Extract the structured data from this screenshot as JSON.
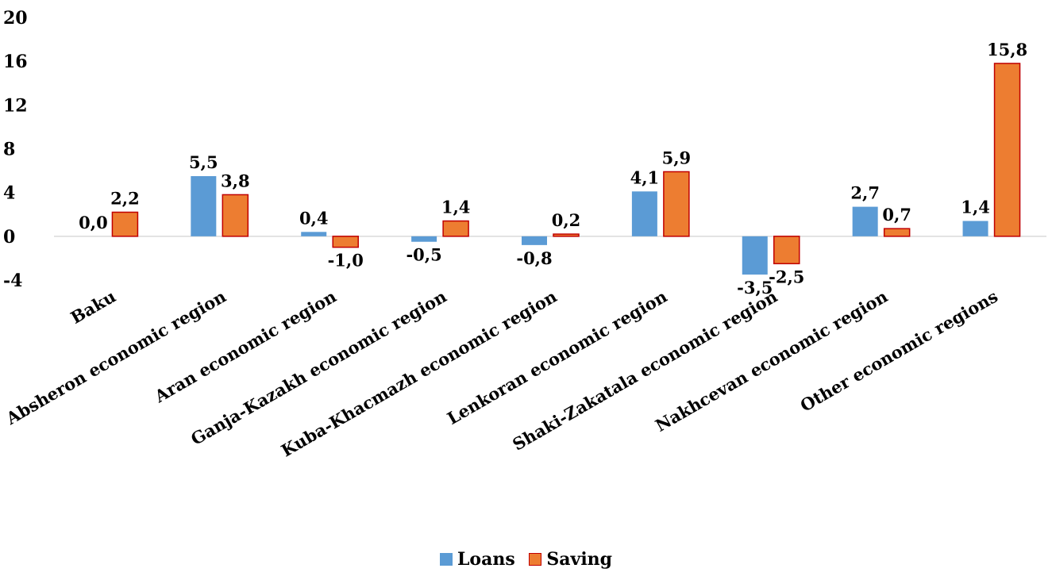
{
  "chart_data": {
    "type": "bar",
    "title": "",
    "xlabel": "",
    "ylabel": "",
    "ylim": [
      -4,
      20
    ],
    "yticks": [
      20,
      16,
      12,
      8,
      4,
      0,
      -4
    ],
    "grid": false,
    "legend_position": "bottom",
    "categories": [
      "Baku",
      "Absheron economic region",
      "Aran economic region",
      "Ganja-Kazakh economic region",
      "Kuba-Khacmazh economic region",
      "Lenkoran economic region",
      "Shaki-Zakatala economic region",
      "Nakhcevan economic region",
      "Other economic regions"
    ],
    "series": [
      {
        "name": "Loans",
        "color": "#5b9bd5",
        "values": [
          0.0,
          5.5,
          0.4,
          -0.5,
          -0.8,
          4.1,
          -3.5,
          2.7,
          1.4
        ],
        "labels": [
          "0,0",
          "5,5",
          "0,4",
          "-0,5",
          "-0,8",
          "4,1",
          "-3,5",
          "2,7",
          "1,4"
        ]
      },
      {
        "name": "Saving",
        "color": "#ed7d31",
        "edge_color": "#c00000",
        "values": [
          2.2,
          3.8,
          -1.0,
          1.4,
          0.2,
          5.9,
          -2.5,
          0.7,
          15.8
        ],
        "labels": [
          "2,2",
          "3,8",
          "-1,0",
          "1,4",
          "0,2",
          "5,9",
          "-2,5",
          "0,7",
          "15,8"
        ]
      }
    ]
  }
}
